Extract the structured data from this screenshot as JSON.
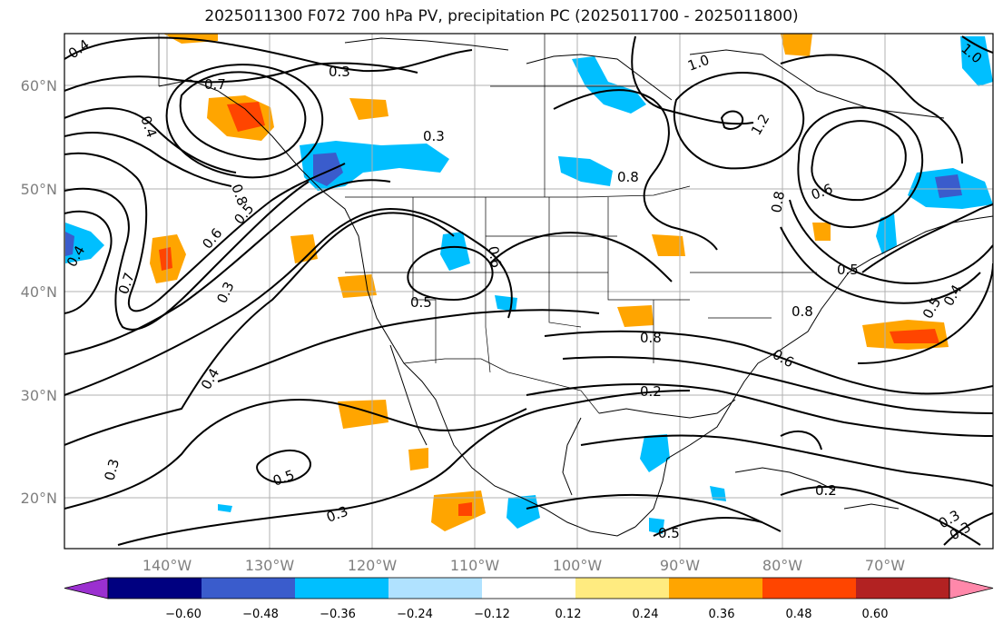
{
  "title": "2025011300 F072 700 hPa PV, precipitation PC (2025011700 - 2025011800)",
  "map": {
    "lat_labels": [
      "60°N",
      "50°N",
      "40°N",
      "30°N",
      "20°N"
    ],
    "lon_labels": [
      "140°W",
      "130°W",
      "120°W",
      "110°W",
      "100°W",
      "90°W",
      "80°W",
      "70°W"
    ],
    "contour_labels": [
      "0.4",
      "0.3",
      "0.7",
      "0.4",
      "0.3",
      "1.0",
      "0.8",
      "1.2",
      "1.0",
      "0.6",
      "0.8",
      "0.4",
      "0.6",
      "0.5",
      "0.7",
      "0.8",
      "0.6",
      "0.3",
      "0.5",
      "0.5",
      "0.8",
      "0.8",
      "0.5",
      "0.4",
      "0.6",
      "0.4",
      "0.2",
      "0.3",
      "0.5",
      "0.3",
      "0.2",
      "0.3",
      "0.3",
      "0.5"
    ],
    "colors": {
      "contour": "#000000",
      "coast": "#000000",
      "grid": "#b0b0b0",
      "frame": "#000000"
    }
  },
  "colorbar": {
    "ticks": [
      "−0.60",
      "−0.48",
      "−0.36",
      "−0.24",
      "−0.12",
      "0.12",
      "0.24",
      "0.36",
      "0.48",
      "0.60"
    ],
    "colors": [
      "#9b30d0",
      "#000080",
      "#3a5ccc",
      "#00bfff",
      "#b0e2ff",
      "#ffffff",
      "#ffeb80",
      "#ffa500",
      "#ff4500",
      "#b22222",
      "#ff88aa"
    ]
  }
}
